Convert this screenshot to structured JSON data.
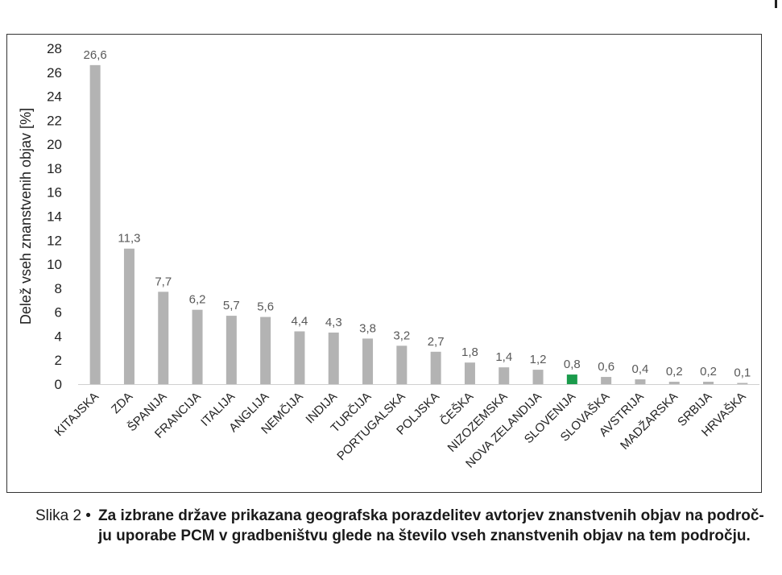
{
  "chart_data": {
    "type": "bar",
    "categories": [
      "KITAJSKA",
      "ZDA",
      "ŠPANIJA",
      "FRANCIJA",
      "ITALIJA",
      "ANGLIJA",
      "NEMČIJA",
      "INDIJA",
      "TURČIJA",
      "PORTUGALSKA",
      "POLJSKA",
      "ČEŠKA",
      "NIZOZEMSKA",
      "NOVA ZELANDIJA",
      "SLOVENIJA",
      "SLOVAŠKA",
      "AVSTRIJA",
      "MADŽARSKA",
      "SRBIJA",
      "HRVAŠKA"
    ],
    "values": [
      26.6,
      11.3,
      7.7,
      6.2,
      5.7,
      5.6,
      4.4,
      4.3,
      3.8,
      3.2,
      2.7,
      1.8,
      1.4,
      1.2,
      0.8,
      0.6,
      0.4,
      0.2,
      0.2,
      0.1
    ],
    "value_labels": [
      "26,6",
      "11,3",
      "7,7",
      "6,2",
      "5,7",
      "5,6",
      "4,4",
      "4,3",
      "3,8",
      "3,2",
      "2,7",
      "1,8",
      "1,4",
      "1,2",
      "0,8",
      "0,6",
      "0,4",
      "0,2",
      "0,2",
      "0,1"
    ],
    "ylabel": "Delež vseh znanstvenih objav [%]",
    "ylim": [
      0,
      28
    ],
    "yticks": [
      0,
      2,
      4,
      6,
      8,
      10,
      12,
      14,
      16,
      18,
      20,
      22,
      24,
      26,
      28
    ],
    "bar_color": "#b3b3b3",
    "highlight_category": "SLOVENIJA",
    "highlight_color": "#1a9b4b",
    "grid": false
  },
  "caption": {
    "prefix": "Slika 2 •",
    "text": "Za izbrane države prikazana geografska porazdelitev avtorjev znanstvenih objav na področ-ju uporabe PCM v gradbeništvu glede na število vseh znanstvenih objav na tem področju."
  }
}
